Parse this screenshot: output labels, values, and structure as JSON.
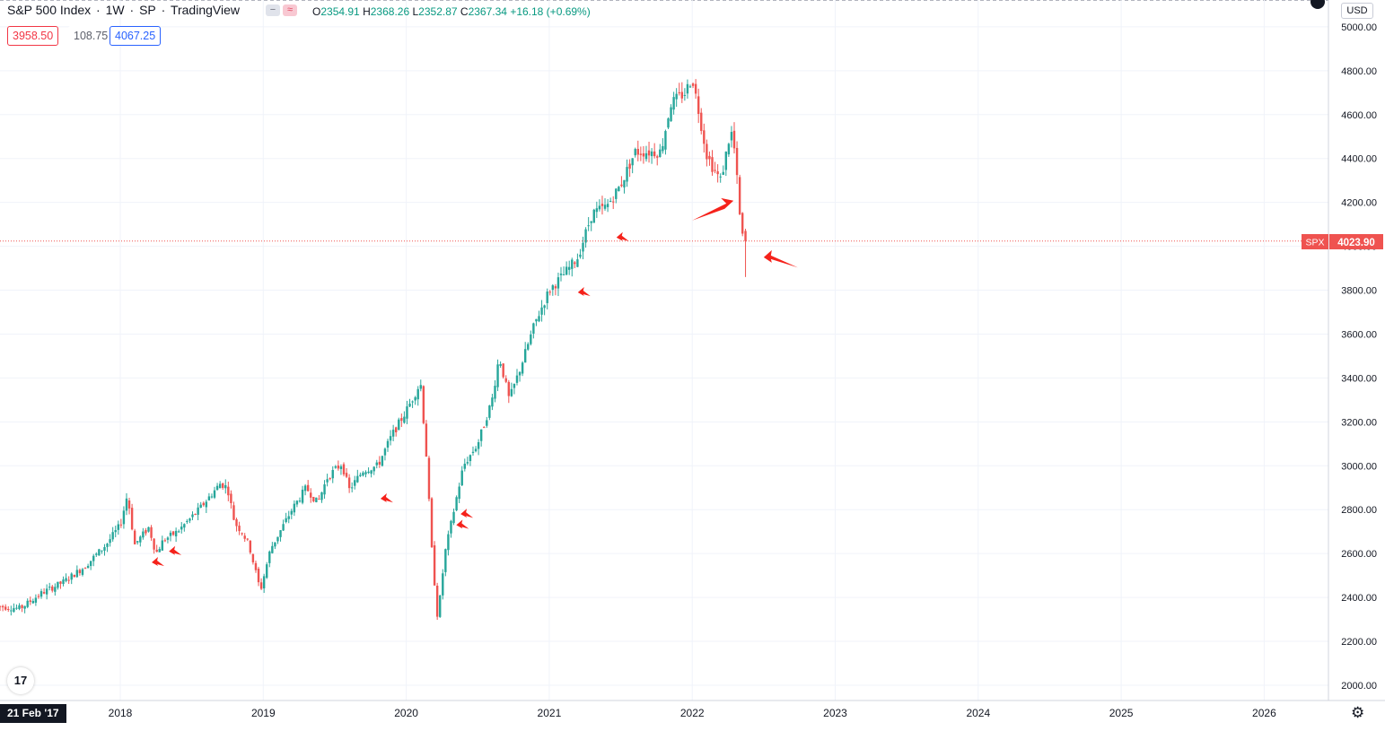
{
  "header": {
    "title": "S&P 500 Index",
    "interval": "1W",
    "exchange": "SP",
    "provider": "TradingView",
    "sep": "·",
    "open_label": "O",
    "open": "2354.91",
    "high_label": "H",
    "high": "2368.26",
    "low_label": "L",
    "low": "2352.87",
    "close_label": "C",
    "close": "2367.34",
    "change": "+16.18 (+0.69%)"
  },
  "quote": {
    "bid": "3958.50",
    "spread": "108.75",
    "ask": "4067.25"
  },
  "currency": "USD",
  "logo_text": "17",
  "date_flag": "21 Feb '17",
  "gear_glyph": "⚙",
  "colors": {
    "up": "#26a69a",
    "down": "#ef5350",
    "arrow": "#f5221b",
    "price_line": "#ef5350"
  },
  "chart_data": {
    "type": "candlestick",
    "timeframe": "1W",
    "x_ticks": [
      "2018",
      "2019",
      "2020",
      "2021",
      "2022",
      "2023",
      "2024",
      "2025",
      "2026"
    ],
    "y_ticks": [
      "2000.00",
      "2200.00",
      "2400.00",
      "2600.00",
      "2800.00",
      "3000.00",
      "3200.00",
      "3400.00",
      "3600.00",
      "3800.00",
      "4000.00",
      "4200.00",
      "4400.00",
      "4600.00",
      "4800.00",
      "5000.00"
    ],
    "ylim": [
      1950,
      5050
    ],
    "x_range": [
      2017.14,
      2026.4
    ],
    "last_price": {
      "symbol": "SPX",
      "value": "4023.90"
    },
    "price_path": [
      [
        2017.14,
        2360
      ],
      [
        2017.3,
        2350
      ],
      [
        2017.45,
        2420
      ],
      [
        2017.6,
        2470
      ],
      [
        2017.75,
        2540
      ],
      [
        2017.9,
        2640
      ],
      [
        2018.0,
        2730
      ],
      [
        2018.05,
        2870
      ],
      [
        2018.1,
        2640
      ],
      [
        2018.2,
        2720
      ],
      [
        2018.25,
        2600
      ],
      [
        2018.3,
        2660
      ],
      [
        2018.4,
        2700
      ],
      [
        2018.55,
        2800
      ],
      [
        2018.7,
        2920
      ],
      [
        2018.75,
        2900
      ],
      [
        2018.8,
        2740
      ],
      [
        2018.85,
        2700
      ],
      [
        2018.9,
        2640
      ],
      [
        2018.98,
        2430
      ],
      [
        2019.05,
        2620
      ],
      [
        2019.2,
        2800
      ],
      [
        2019.3,
        2900
      ],
      [
        2019.38,
        2830
      ],
      [
        2019.45,
        2950
      ],
      [
        2019.55,
        3010
      ],
      [
        2019.6,
        2890
      ],
      [
        2019.7,
        2980
      ],
      [
        2019.8,
        3000
      ],
      [
        2019.9,
        3140
      ],
      [
        2020.0,
        3250
      ],
      [
        2020.1,
        3380
      ],
      [
        2020.14,
        3050
      ],
      [
        2020.18,
        2600
      ],
      [
        2020.22,
        2300
      ],
      [
        2020.27,
        2600
      ],
      [
        2020.35,
        2850
      ],
      [
        2020.4,
        3000
      ],
      [
        2020.5,
        3100
      ],
      [
        2020.6,
        3300
      ],
      [
        2020.65,
        3500
      ],
      [
        2020.72,
        3300
      ],
      [
        2020.8,
        3450
      ],
      [
        2020.9,
        3650
      ],
      [
        2021.0,
        3800
      ],
      [
        2021.1,
        3870
      ],
      [
        2021.2,
        3950
      ],
      [
        2021.3,
        4150
      ],
      [
        2021.4,
        4180
      ],
      [
        2021.5,
        4280
      ],
      [
        2021.6,
        4430
      ],
      [
        2021.7,
        4430
      ],
      [
        2021.78,
        4430
      ],
      [
        2021.85,
        4650
      ],
      [
        2021.95,
        4700
      ],
      [
        2022.0,
        4770
      ],
      [
        2022.05,
        4600
      ],
      [
        2022.1,
        4420
      ],
      [
        2022.15,
        4350
      ],
      [
        2022.2,
        4300
      ],
      [
        2022.27,
        4530
      ],
      [
        2022.3,
        4420
      ],
      [
        2022.33,
        4150
      ],
      [
        2022.36,
        4000
      ]
    ],
    "annotations": "red arrows"
  }
}
